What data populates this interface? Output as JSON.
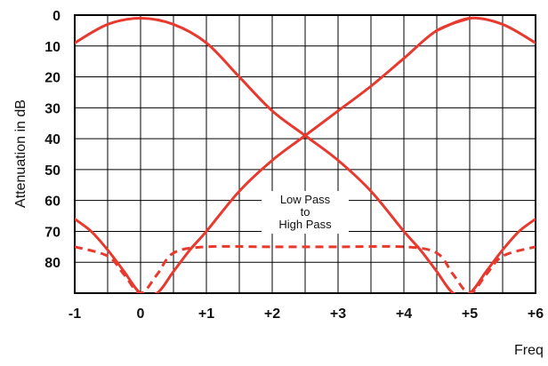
{
  "chart_data": {
    "type": "line",
    "title": "",
    "ylabel": "Attenuation in dB",
    "xlabel": "Freq",
    "x_ticks": [
      "-1",
      "0",
      "+1",
      "+2",
      "+3",
      "+4",
      "+5",
      "+6"
    ],
    "y_ticks": [
      "0",
      "10",
      "20",
      "30",
      "40",
      "50",
      "60",
      "70",
      "80"
    ],
    "xlim": [
      -1,
      6
    ],
    "ylim": [
      0,
      90
    ],
    "y_inverted": true,
    "grid": true,
    "annotation": {
      "lines": [
        "Low Pass",
        "to",
        "High Pass"
      ],
      "x": 2.5,
      "y": 65
    },
    "colors": {
      "curve": "#e8392e",
      "grid": "#000000",
      "background": "#ffffff"
    },
    "series": [
      {
        "style": "solid",
        "x": [
          -1,
          -0.75,
          -0.5,
          -0.25,
          0,
          0.25,
          0.5,
          0.75,
          1,
          1.5,
          2,
          2.5,
          3,
          3.5,
          4,
          4.5,
          5
        ],
        "y": [
          66,
          70,
          76,
          83,
          90,
          90,
          83,
          76,
          70,
          57,
          47,
          39,
          31,
          23,
          14,
          5,
          1
        ],
        "_comment": "low-pass to high-pass rising branch (left lobe + ramp to right passband)"
      },
      {
        "style": "solid",
        "x": [
          -1,
          -0.5,
          0,
          0.5,
          1,
          1.5,
          2,
          2.5,
          3,
          3.5,
          4,
          4.25,
          4.5,
          4.75,
          5,
          5.25,
          5.5,
          5.75,
          6
        ],
        "y": [
          9,
          3,
          1,
          3,
          9,
          20,
          31,
          39,
          47,
          57,
          70,
          76,
          83,
          90,
          90,
          83,
          76,
          70,
          66
        ],
        "_comment": "falling branch from left passband down to null and right lobe"
      },
      {
        "style": "solid",
        "x": [
          4.5,
          5,
          5.5,
          6
        ],
        "y": [
          5,
          1,
          3,
          9
        ]
      },
      {
        "style": "dashed",
        "x": [
          -1,
          -0.5,
          -0.25,
          0,
          0.25,
          0.5,
          1,
          2,
          3,
          4,
          4.5,
          4.75,
          5,
          5.25,
          5.5,
          6
        ],
        "y": [
          75,
          78,
          84,
          90,
          84,
          77,
          75,
          75,
          75,
          75,
          77,
          84,
          90,
          84,
          78,
          75
        ]
      }
    ]
  }
}
